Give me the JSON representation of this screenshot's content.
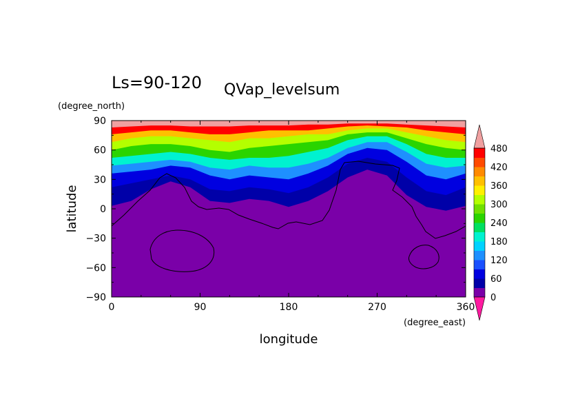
{
  "chart_data": {
    "type": "heatmap",
    "title_left": "Ls=90-120",
    "title_right": "QVap_levelsum",
    "xlabel": "longitude",
    "ylabel": "latitude",
    "x_units": "(degree_east)",
    "y_units": "(degree_north)",
    "xlim": [
      0,
      360
    ],
    "ylim": [
      -90,
      90
    ],
    "x_ticks": [
      "0",
      "90",
      "180",
      "270",
      "360"
    ],
    "y_ticks": [
      "90",
      "60",
      "30",
      "0",
      "-30",
      "-60",
      "-90"
    ],
    "colorbar_levels": [
      "480",
      "420",
      "360",
      "300",
      "240",
      "180",
      "120",
      "60",
      "0"
    ],
    "colors": {
      "lt0": "#ff1aa0",
      "l0": "#7a00a8",
      "l30": "#0000a8",
      "l60": "#0000e0",
      "l90": "#1a50ff",
      "l120": "#1e90ff",
      "l150": "#00d2ff",
      "l180": "#00f2d0",
      "l210": "#00e060",
      "l240": "#2ad400",
      "l270": "#70e000",
      "l300": "#b4ff00",
      "l330": "#fff000",
      "l360": "#ffc000",
      "l390": "#ff8a00",
      "l420": "#ff4a00",
      "l450": "#ff0000",
      "gt480": "#f0a0a0"
    },
    "contour_profile_lon": [
      0,
      20,
      40,
      60,
      80,
      100,
      120,
      140,
      160,
      180,
      200,
      220,
      240,
      260,
      280,
      300,
      320,
      340,
      360
    ],
    "contour_profile_levels_lat": [
      {
        "level": 30,
        "lat": [
          3,
          8,
          20,
          28,
          22,
          8,
          6,
          10,
          8,
          2,
          8,
          18,
          32,
          40,
          34,
          14,
          2,
          -2,
          3
        ]
      },
      {
        "level": 60,
        "lat": [
          22,
          26,
          30,
          34,
          30,
          20,
          18,
          22,
          20,
          16,
          22,
          32,
          46,
          52,
          48,
          32,
          18,
          14,
          22
        ]
      },
      {
        "level": 120,
        "lat": [
          36,
          38,
          40,
          44,
          42,
          34,
          30,
          34,
          32,
          30,
          36,
          44,
          56,
          62,
          60,
          48,
          34,
          30,
          36
        ]
      },
      {
        "level": 180,
        "lat": [
          44,
          46,
          48,
          50,
          48,
          42,
          40,
          44,
          42,
          42,
          46,
          52,
          62,
          68,
          68,
          58,
          46,
          42,
          44
        ]
      },
      {
        "level": 240,
        "lat": [
          52,
          54,
          56,
          58,
          56,
          52,
          50,
          52,
          52,
          54,
          58,
          62,
          70,
          74,
          74,
          66,
          56,
          52,
          52
        ]
      },
      {
        "level": 300,
        "lat": [
          60,
          64,
          66,
          66,
          64,
          60,
          58,
          62,
          64,
          66,
          68,
          70,
          76,
          78,
          78,
          72,
          66,
          62,
          60
        ]
      },
      {
        "level": 360,
        "lat": [
          68,
          72,
          74,
          74,
          72,
          70,
          68,
          72,
          72,
          74,
          76,
          76,
          80,
          82,
          82,
          78,
          74,
          70,
          68
        ]
      },
      {
        "level": 420,
        "lat": [
          76,
          78,
          80,
          80,
          78,
          76,
          76,
          78,
          80,
          80,
          80,
          82,
          84,
          85,
          84,
          83,
          80,
          78,
          76
        ]
      },
      {
        "level": 480,
        "lat": [
          83,
          84,
          85,
          85,
          84,
          84,
          84,
          85,
          85,
          85,
          86,
          86,
          87,
          87,
          87,
          86,
          85,
          84,
          83
        ]
      }
    ],
    "annotations": "black topography contour lines",
    "grid": false
  }
}
